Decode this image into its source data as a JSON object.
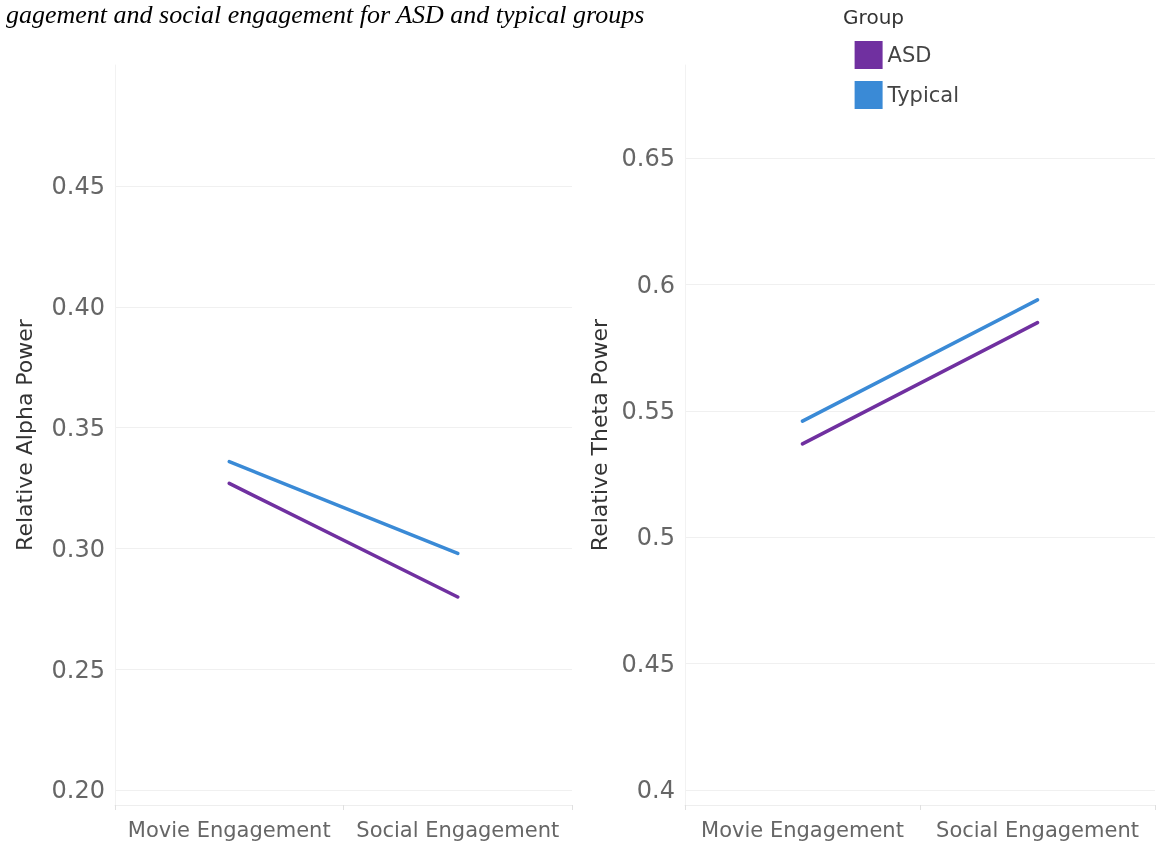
{
  "chart_data": [
    {
      "type": "line",
      "title": "gagement and social engagement for ASD and typical groups",
      "ylabel": "Relative Alpha Power",
      "categories": [
        "Movie Engagement",
        "Social Engagement"
      ],
      "series": [
        {
          "color": "#7030a0",
          "values": [
            0.327,
            0.28
          ]
        },
        {
          "color": "#3a8ad6",
          "values": [
            0.336,
            0.298
          ]
        }
      ],
      "ylim": [
        0.194,
        0.5
      ],
      "yticks": [
        {
          "value": 0.2,
          "label": "0.20"
        },
        0.25,
        {
          "value": 0.3,
          "label": "0.30"
        },
        0.35,
        {
          "value": 0.4,
          "label": "0.40"
        },
        0.45
      ],
      "grid": "y",
      "marker": "none",
      "line_style": "solid"
    },
    {
      "type": "line",
      "ylabel": "Relative Theta Power",
      "legend_title": "Group",
      "categories": [
        "Movie Engagement",
        "Social Engagement"
      ],
      "series": [
        {
          "name": "ASD",
          "color": "#7030a0",
          "values": [
            0.537,
            0.585
          ]
        },
        {
          "name": "Typical",
          "color": "#3a8ad6",
          "values": [
            0.546,
            0.594
          ]
        }
      ],
      "ylim": [
        0.394,
        0.687
      ],
      "yticks": [
        0.4,
        0.45,
        0.5,
        0.55,
        0.6,
        0.65
      ],
      "grid": "y",
      "legend": "top right",
      "marker": "none",
      "line_style": "solid"
    }
  ]
}
